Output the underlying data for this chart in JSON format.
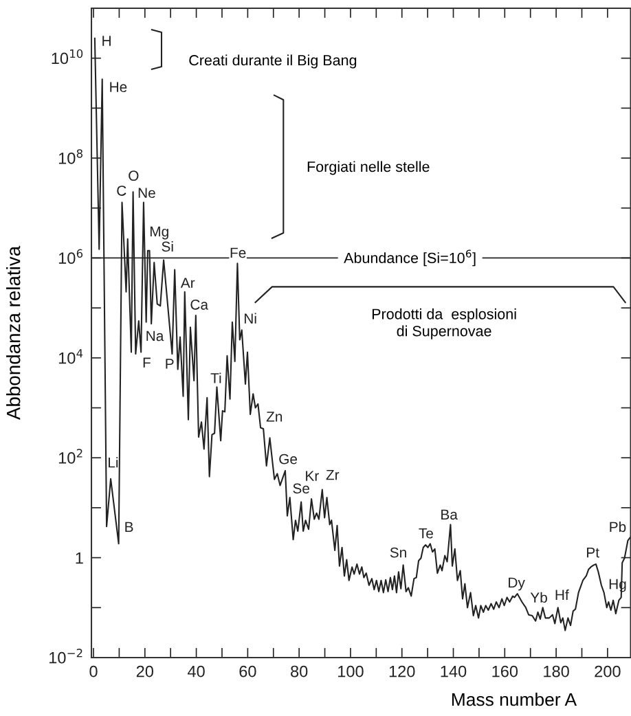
{
  "chart_data": {
    "type": "line",
    "xlabel": "Mass number A",
    "ylabel": "Abbondanza relativa",
    "log": "y",
    "grid": false,
    "legend": false,
    "marker": "none",
    "line_style": "solid",
    "xlim": [
      -0.8,
      209
    ],
    "xticks": [
      0,
      {
        "value": 10,
        "label": null
      },
      20,
      {
        "value": 30,
        "label": null
      },
      40,
      {
        "value": 50,
        "label": null
      },
      60,
      {
        "value": 70,
        "label": null
      },
      80,
      {
        "value": 90,
        "label": null
      },
      100,
      {
        "value": 110,
        "label": null
      },
      120,
      {
        "value": 130,
        "label": null
      },
      140,
      {
        "value": 150,
        "label": null
      },
      160,
      {
        "value": 170,
        "label": null
      },
      180,
      {
        "value": 190,
        "label": null
      },
      200
    ],
    "ylim": [
      0.01,
      100000000000
    ],
    "yticks": [
      {
        "value": 0.01,
        "label": "10$^{−2}$"
      },
      {
        "value": 0.1,
        "label": null
      },
      1,
      {
        "value": 10,
        "label": null
      },
      {
        "value": 100,
        "label": "10$^{2}$"
      },
      {
        "value": 1000,
        "label": null
      },
      {
        "value": 10000,
        "label": "10$^{4}$"
      },
      {
        "value": 100000,
        "label": null
      },
      {
        "value": 1000000,
        "label": "10$^{6}$"
      },
      {
        "value": 10000000,
        "label": null
      },
      {
        "value": 100000000,
        "label": "10$^{8}$"
      },
      {
        "value": 1000000000,
        "label": null
      },
      {
        "value": 10000000000,
        "label": "10$^{10}$"
      }
    ],
    "series": [
      {
        "color": "#222222",
        "x": [
          0.5,
          2.2,
          3.4,
          5.1,
          6.7,
          9.8,
          11.1,
          12.7,
          13.3,
          14.7,
          15.4,
          16.4,
          17.6,
          18.5,
          19.5,
          20.5,
          21.1,
          21.8,
          22.5,
          23.6,
          24.8,
          26.0,
          27.3,
          30.6,
          31.6,
          32.8,
          33.7,
          34.9,
          35.5,
          36.9,
          37.7,
          39.1,
          39.8,
          40.9,
          42.0,
          43.0,
          44.2,
          45.1,
          46.1,
          47.1,
          48.0,
          49.5,
          50.2,
          51.1,
          52.0,
          53.1,
          54.0,
          55.0,
          56.0,
          56.9,
          57.7,
          59.1,
          59.9,
          61.0,
          62.1,
          63.0,
          64.0,
          65.0,
          66.1,
          67.3,
          68.6,
          69.8,
          70.4,
          71.5,
          72.6,
          74.6,
          75.4,
          76.4,
          77.7,
          78.6,
          79.5,
          80.8,
          81.6,
          82.5,
          83.7,
          84.8,
          85.9,
          86.8,
          87.7,
          89.0,
          89.9,
          90.8,
          91.9,
          92.6,
          93.9,
          94.8,
          95.7,
          96.7,
          97.6,
          98.5,
          99.4,
          100.6,
          101.4,
          102.5,
          103.5,
          104.4,
          105.2,
          106.1,
          107.2,
          108.3,
          109.2,
          110.1,
          111.0,
          111.9,
          112.8,
          113.7,
          114.6,
          115.5,
          116.3,
          117.1,
          117.9,
          118.7,
          119.6,
          120.5,
          121.6,
          122.5,
          123.6,
          124.7,
          125.6,
          126.5,
          127.4,
          128.3,
          129.2,
          130.1,
          131.0,
          131.9,
          132.8,
          133.8,
          134.9,
          135.6,
          136.7,
          137.6,
          138.9,
          139.6,
          140.6,
          141.6,
          142.7,
          143.6,
          144.5,
          145.5,
          146.7,
          147.8,
          148.7,
          149.8,
          150.7,
          151.7,
          152.6,
          153.6,
          154.7,
          155.7,
          156.7,
          157.8,
          158.9,
          159.8,
          160.9,
          161.9,
          163.1,
          163.8,
          164.9,
          166.7,
          168.2,
          169.3,
          170.7,
          172.0,
          172.9,
          173.8,
          174.8,
          175.8,
          177.3,
          178.6,
          179.5,
          180.7,
          181.8,
          182.6,
          183.5,
          184.6,
          185.6,
          186.6,
          187.5,
          188.7,
          190.4,
          191.7,
          192.6,
          193.5,
          194.6,
          195.5,
          196.4,
          197.6,
          198.6,
          199.7,
          200.4,
          201.3,
          202.2,
          203.2,
          204.4,
          205.3,
          205.7,
          206.6,
          207.9,
          208.7
        ],
        "values": [
          25000000000,
          1500000,
          3800000000,
          4.2,
          38,
          1.9,
          13000000,
          210000,
          2400000,
          13000,
          21000000,
          12000,
          55000,
          13000,
          13000000,
          52000,
          1400000,
          1400000,
          48000,
          810000,
          120000,
          110000,
          910000,
          12000,
          580000,
          5900,
          26000,
          1700,
          210000,
          580,
          41000,
          3500,
          71000,
          260,
          520,
          150,
          1600,
          42,
          290,
          310,
          2600,
          220,
          870,
          830,
          11000,
          1500,
          52000,
          8500,
          780000,
          23000,
          36000,
          3000,
          13000,
          740,
          1900,
          1000,
          1200,
          400,
          380,
          69,
          250,
          69,
          37,
          48,
          28,
          55,
          6.9,
          16,
          2.3,
          5.6,
          3.4,
          13,
          3.4,
          5.6,
          3.7,
          15,
          5.9,
          7.8,
          5.9,
          23,
          6.3,
          16,
          4.6,
          5.6,
          1.4,
          4.4,
          0.68,
          1.6,
          0.43,
          0.91,
          0.35,
          0.65,
          0.47,
          0.74,
          0.47,
          0.65,
          0.4,
          0.49,
          0.28,
          0.38,
          0.23,
          0.35,
          0.21,
          0.35,
          0.2,
          0.36,
          0.21,
          0.4,
          0.23,
          0.43,
          0.2,
          0.52,
          0.24,
          0.71,
          0.21,
          0.25,
          0.17,
          0.38,
          0.4,
          0.87,
          0.98,
          1.6,
          1.8,
          1.6,
          1.9,
          1.3,
          1.5,
          0.49,
          0.71,
          0.55,
          1.1,
          0.83,
          4.6,
          0.68,
          1.5,
          0.35,
          0.55,
          0.15,
          0.3,
          0.1,
          0.2,
          0.069,
          0.11,
          0.062,
          0.11,
          0.081,
          0.11,
          0.089,
          0.12,
          0.093,
          0.13,
          0.1,
          0.15,
          0.11,
          0.16,
          0.13,
          0.17,
          0.16,
          0.19,
          0.13,
          0.1,
          0.072,
          0.069,
          0.054,
          0.081,
          0.059,
          0.1,
          0.062,
          0.062,
          0.072,
          0.048,
          0.1,
          0.05,
          0.062,
          0.035,
          0.062,
          0.044,
          0.085,
          0.093,
          0.2,
          0.35,
          0.43,
          0.58,
          0.65,
          0.71,
          0.74,
          0.52,
          0.28,
          0.2,
          0.1,
          0.13,
          0.089,
          0.14,
          0.076,
          0.14,
          0.16,
          0.79,
          0.98,
          2.2,
          2.5
        ]
      }
    ],
    "ref_lines": [
      {
        "axis": "y",
        "value": 1000000,
        "color": "#222222",
        "line_style": "solid"
      }
    ],
    "annotations": [
      {
        "text": "H",
        "x": 5.1,
        "y": 21000000000
      },
      {
        "text": "He",
        "x": 9.6,
        "y": 2500000000
      },
      {
        "text": "C",
        "x": 10.9,
        "y": 21000000
      },
      {
        "text": "O",
        "x": 15.6,
        "y": 42000000
      },
      {
        "text": "Ne",
        "x": 20.7,
        "y": 19000000
      },
      {
        "text": "Mg",
        "x": 25.6,
        "y": 3200000
      },
      {
        "text": "Si",
        "x": 28.8,
        "y": 1600000
      },
      {
        "text": "Na",
        "x": 23.8,
        "y": 26000
      },
      {
        "text": "F",
        "x": 20.7,
        "y": 7600
      },
      {
        "text": "P",
        "x": 29.6,
        "y": 7200
      },
      {
        "text": "Ar",
        "x": 36.7,
        "y": 300000
      },
      {
        "text": "Ca",
        "x": 41.1,
        "y": 110000
      },
      {
        "text": "Ti",
        "x": 47.7,
        "y": 3700
      },
      {
        "text": "Fe",
        "x": 56.2,
        "y": 1200000
      },
      {
        "text": "Ni",
        "x": 61.0,
        "y": 58000
      },
      {
        "text": "Li",
        "x": 7.6,
        "y": 76
      },
      {
        "text": "B",
        "x": 13.8,
        "y": 3.9
      },
      {
        "text": "Zn",
        "x": 70.4,
        "y": 630
      },
      {
        "text": "Ge",
        "x": 75.7,
        "y": 89
      },
      {
        "text": "Se",
        "x": 80.8,
        "y": 23
      },
      {
        "text": "Kr",
        "x": 85.0,
        "y": 41
      },
      {
        "text": "Zr",
        "x": 93.0,
        "y": 43
      },
      {
        "text": "Sn",
        "x": 118.6,
        "y": 1.2
      },
      {
        "text": "Te",
        "x": 129.4,
        "y": 2.9
      },
      {
        "text": "Ba",
        "x": 138.3,
        "y": 6.9
      },
      {
        "text": "Dy",
        "x": 164.5,
        "y": 0.3
      },
      {
        "text": "Yb",
        "x": 173.3,
        "y": 0.15
      },
      {
        "text": "Hf",
        "x": 182.2,
        "y": 0.17
      },
      {
        "text": "Pt",
        "x": 194.2,
        "y": 1.2
      },
      {
        "text": "Hg",
        "x": 203.9,
        "y": 0.28
      },
      {
        "text": "Pb",
        "x": 203.9,
        "y": 3.9
      },
      "Creati durante il Big Bang",
      "Forgiati nelle stelle",
      "Prodotti da  esplosioni\ndi Supernovae",
      "Abundance [Si=10$^{6}$]"
    ]
  }
}
